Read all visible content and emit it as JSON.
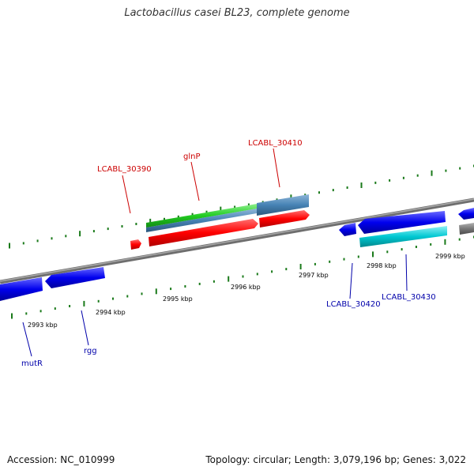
{
  "title": "Lactobacillus casei BL23, complete genome",
  "footer": {
    "accession": "Accession: NC_010999",
    "summary": "Topology: circular; Length: 3,079,196 bp; Genes: 3,022"
  },
  "colors": {
    "axis": "#7a7a7a",
    "tick": "#1a7a1a",
    "upper_label": "#cc0000",
    "lower_label": "#0000aa",
    "gene_red": "#ff0000",
    "gene_blue": "#0000ee",
    "gene_cyan": "#00c8d2",
    "gene_green": "#22cc22",
    "gene_steel": "#4682b4",
    "gene_gray": "#777777"
  },
  "scale_labels": [
    "2993 kbp",
    "2994 kbp",
    "2995 kbp",
    "2996 kbp",
    "2997 kbp",
    "2998 kbp",
    "2999 kbp"
  ],
  "gene_labels": [
    {
      "name": "LCABL_30390",
      "strand": "upper"
    },
    {
      "name": "glnP",
      "strand": "upper"
    },
    {
      "name": "LCABL_30410",
      "strand": "upper"
    },
    {
      "name": "LCABL_30420",
      "strand": "lower"
    },
    {
      "name": "LCABL_30430",
      "strand": "lower"
    },
    {
      "name": "mutR",
      "strand": "lower"
    },
    {
      "name": "rgg",
      "strand": "lower"
    }
  ]
}
